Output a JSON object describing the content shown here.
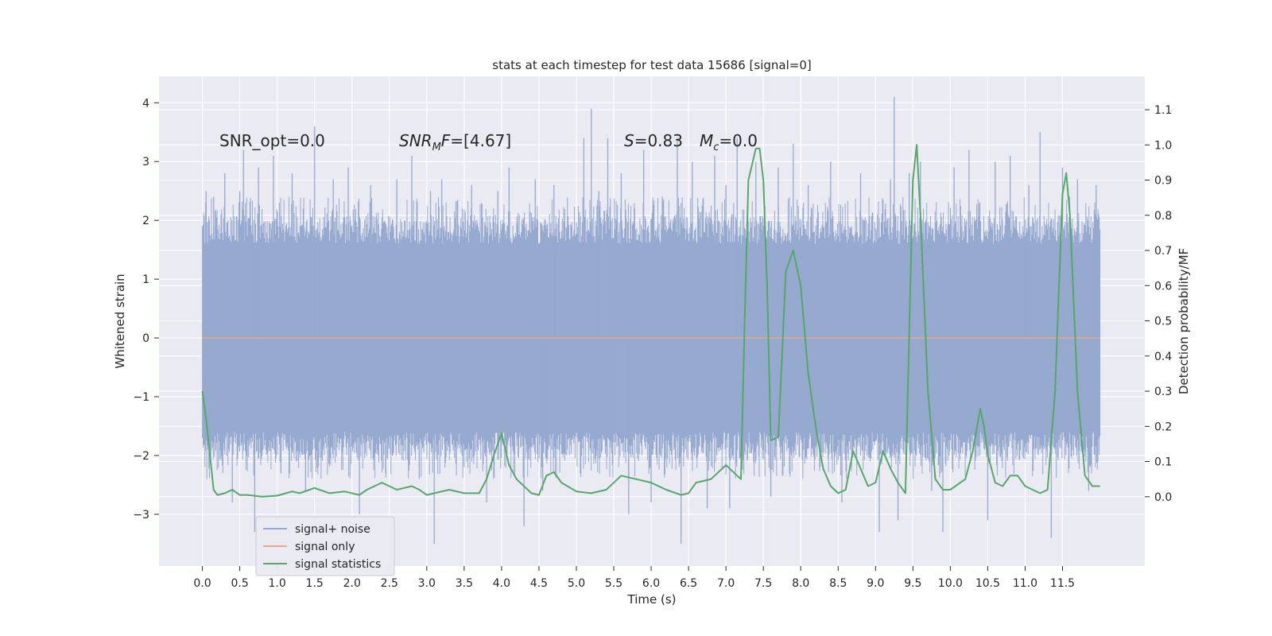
{
  "chart_data": {
    "type": "line",
    "title": "stats at each timestep for test data 15686 [signal=0]",
    "xlabel": "Time (s)",
    "ylabel": "Whitened strain",
    "y2label": "Detection probability/MF",
    "xlim": [
      -0.58,
      12.6
    ],
    "ylim": [
      -3.88,
      4.45
    ],
    "y2lim": [
      -0.197,
      1.195
    ],
    "x_ticks": [
      "0.0",
      "0.5",
      "1.0",
      "1.5",
      "2.0",
      "2.5",
      "3.0",
      "3.5",
      "4.0",
      "4.5",
      "5.0",
      "5.5",
      "6.0",
      "6.5",
      "7.0",
      "7.5",
      "8.0",
      "8.5",
      "9.0",
      "9.5",
      "10.0",
      "10.5",
      "11.0",
      "11.5"
    ],
    "y_ticks": [
      4,
      3,
      2,
      1,
      0,
      -1,
      -2,
      -3
    ],
    "y_tick_labels": [
      "4",
      "3",
      "2",
      "1",
      "0",
      "−1",
      "−2",
      "−3"
    ],
    "y2_ticks": [
      1.1,
      1.0,
      0.9,
      0.8,
      0.7,
      0.6,
      0.5,
      0.4,
      0.3,
      0.2,
      0.1,
      0.0
    ],
    "y2_tick_labels": [
      "1.1",
      "1.0",
      "0.9",
      "0.8",
      "0.7",
      "0.6",
      "0.5",
      "0.4",
      "0.3",
      "0.2",
      "0.1",
      "0.0"
    ],
    "grid": true,
    "legend_position": "lower-left",
    "annotations": {
      "snr_opt": "SNR_opt=0.0",
      "snr_mf_name": "SNR",
      "snr_mf_sub": "M",
      "snr_mf_suffix": "F",
      "snr_mf_value": "=[4.67]",
      "s_name": "S",
      "s_value": "=0.83",
      "mc_name": "M",
      "mc_sub": "c",
      "mc_value": "=0.0"
    },
    "series": [
      {
        "name": "signal+ noise",
        "color": "#96a9cf",
        "axis": "left",
        "x_range": [
          0.0,
          12.0
        ],
        "band_abs": 1.5,
        "spikes": [
          {
            "x": 0.05,
            "y": 2.5
          },
          {
            "x": 0.1,
            "y": -1.7
          },
          {
            "x": 0.15,
            "y": 2.4
          },
          {
            "x": 0.25,
            "y": 2.1
          },
          {
            "x": 0.3,
            "y": 2.8
          },
          {
            "x": 0.4,
            "y": -2.8
          },
          {
            "x": 0.5,
            "y": 2.5
          },
          {
            "x": 0.55,
            "y": 3.2
          },
          {
            "x": 0.7,
            "y": -3.3
          },
          {
            "x": 0.75,
            "y": 2.9
          },
          {
            "x": 0.95,
            "y": 3.1
          },
          {
            "x": 1.05,
            "y": -2.3
          },
          {
            "x": 1.2,
            "y": 2.8
          },
          {
            "x": 1.38,
            "y": -2.6
          },
          {
            "x": 1.5,
            "y": 3.6
          },
          {
            "x": 1.75,
            "y": 2.7
          },
          {
            "x": 1.95,
            "y": 2.9
          },
          {
            "x": 2.1,
            "y": -3.0
          },
          {
            "x": 2.25,
            "y": 2.6
          },
          {
            "x": 2.45,
            "y": -2.3
          },
          {
            "x": 2.6,
            "y": 2.7
          },
          {
            "x": 2.8,
            "y": 3.1
          },
          {
            "x": 2.9,
            "y": -2.4
          },
          {
            "x": 3.05,
            "y": 2.5
          },
          {
            "x": 3.1,
            "y": -3.5
          },
          {
            "x": 3.2,
            "y": 2.7
          },
          {
            "x": 3.6,
            "y": 2.6
          },
          {
            "x": 3.8,
            "y": -2.8
          },
          {
            "x": 3.95,
            "y": 2.5
          },
          {
            "x": 4.1,
            "y": 2.9
          },
          {
            "x": 4.3,
            "y": -3.2
          },
          {
            "x": 4.45,
            "y": 2.7
          },
          {
            "x": 4.55,
            "y": -2.6
          },
          {
            "x": 4.7,
            "y": 2.6
          },
          {
            "x": 5.1,
            "y": 3.4
          },
          {
            "x": 5.2,
            "y": 3.9
          },
          {
            "x": 5.3,
            "y": 2.5
          },
          {
            "x": 5.42,
            "y": 3.4
          },
          {
            "x": 5.6,
            "y": 2.8
          },
          {
            "x": 5.7,
            "y": -3.0
          },
          {
            "x": 5.9,
            "y": 3.2
          },
          {
            "x": 6.0,
            "y": -2.8
          },
          {
            "x": 6.15,
            "y": 2.4
          },
          {
            "x": 6.35,
            "y": 3.4
          },
          {
            "x": 6.4,
            "y": -3.5
          },
          {
            "x": 6.55,
            "y": 3.0
          },
          {
            "x": 6.75,
            "y": -2.9
          },
          {
            "x": 6.85,
            "y": 3.1
          },
          {
            "x": 7.0,
            "y": 2.6
          },
          {
            "x": 7.05,
            "y": -2.9
          },
          {
            "x": 7.15,
            "y": 3.4
          },
          {
            "x": 7.4,
            "y": 3.0
          },
          {
            "x": 7.6,
            "y": -2.7
          },
          {
            "x": 7.7,
            "y": 2.9
          },
          {
            "x": 7.9,
            "y": 3.3
          },
          {
            "x": 8.1,
            "y": 2.6
          },
          {
            "x": 8.4,
            "y": 3.0
          },
          {
            "x": 8.55,
            "y": -2.8
          },
          {
            "x": 8.8,
            "y": 2.8
          },
          {
            "x": 9.05,
            "y": -3.3
          },
          {
            "x": 9.2,
            "y": 2.7
          },
          {
            "x": 9.25,
            "y": 4.1
          },
          {
            "x": 9.3,
            "y": -3.1
          },
          {
            "x": 9.45,
            "y": 2.8
          },
          {
            "x": 9.6,
            "y": 3.0
          },
          {
            "x": 9.75,
            "y": -2.6
          },
          {
            "x": 9.9,
            "y": -3.3
          },
          {
            "x": 10.05,
            "y": 2.9
          },
          {
            "x": 10.25,
            "y": 3.2
          },
          {
            "x": 10.5,
            "y": -3.1
          },
          {
            "x": 10.6,
            "y": 3.0
          },
          {
            "x": 10.8,
            "y": 3.1
          },
          {
            "x": 11.05,
            "y": 2.6
          },
          {
            "x": 11.2,
            "y": 3.5
          },
          {
            "x": 11.35,
            "y": -3.4
          },
          {
            "x": 11.5,
            "y": 2.9
          },
          {
            "x": 11.7,
            "y": 2.7
          },
          {
            "x": 11.85,
            "y": -2.6
          },
          {
            "x": 11.95,
            "y": 2.6
          }
        ]
      },
      {
        "name": "signal only",
        "color": "#e4a88e",
        "axis": "left",
        "x": [
          0.0,
          12.0
        ],
        "y": [
          0.0,
          0.0
        ]
      },
      {
        "name": "signal statistics",
        "color": "#55a868",
        "axis": "right",
        "x": [
          0.0,
          0.05,
          0.1,
          0.15,
          0.2,
          0.3,
          0.4,
          0.5,
          0.6,
          0.8,
          1.0,
          1.2,
          1.3,
          1.5,
          1.7,
          1.9,
          2.1,
          2.2,
          2.4,
          2.6,
          2.8,
          2.9,
          3.0,
          3.1,
          3.3,
          3.5,
          3.7,
          3.8,
          3.9,
          4.0,
          4.1,
          4.2,
          4.4,
          4.5,
          4.6,
          4.7,
          4.8,
          5.0,
          5.2,
          5.4,
          5.6,
          5.8,
          6.0,
          6.2,
          6.4,
          6.5,
          6.6,
          6.8,
          7.0,
          7.1,
          7.2,
          7.25,
          7.3,
          7.4,
          7.45,
          7.5,
          7.55,
          7.6,
          7.7,
          7.75,
          7.8,
          7.9,
          8.0,
          8.1,
          8.2,
          8.3,
          8.4,
          8.5,
          8.6,
          8.7,
          8.8,
          8.9,
          9.0,
          9.1,
          9.2,
          9.3,
          9.4,
          9.5,
          9.55,
          9.6,
          9.7,
          9.8,
          9.9,
          10.0,
          10.2,
          10.3,
          10.4,
          10.45,
          10.5,
          10.6,
          10.7,
          10.8,
          10.9,
          11.0,
          11.1,
          11.2,
          11.3,
          11.4,
          11.5,
          11.55,
          11.6,
          11.7,
          11.8,
          11.9,
          12.0
        ],
        "y": [
          0.3,
          0.22,
          0.12,
          0.02,
          0.005,
          0.01,
          0.02,
          0.005,
          0.005,
          0.0,
          0.003,
          0.015,
          0.01,
          0.025,
          0.01,
          0.015,
          0.005,
          0.02,
          0.04,
          0.02,
          0.03,
          0.02,
          0.005,
          0.01,
          0.02,
          0.01,
          0.01,
          0.05,
          0.12,
          0.18,
          0.09,
          0.05,
          0.01,
          0.005,
          0.06,
          0.07,
          0.04,
          0.015,
          0.01,
          0.02,
          0.06,
          0.05,
          0.04,
          0.02,
          0.005,
          0.01,
          0.04,
          0.05,
          0.09,
          0.07,
          0.05,
          0.5,
          0.9,
          0.99,
          0.99,
          0.9,
          0.6,
          0.16,
          0.17,
          0.4,
          0.64,
          0.7,
          0.6,
          0.35,
          0.2,
          0.08,
          0.03,
          0.01,
          0.02,
          0.13,
          0.08,
          0.03,
          0.04,
          0.13,
          0.08,
          0.04,
          0.01,
          0.9,
          1.0,
          0.8,
          0.3,
          0.05,
          0.02,
          0.02,
          0.05,
          0.13,
          0.25,
          0.2,
          0.12,
          0.04,
          0.03,
          0.06,
          0.06,
          0.03,
          0.02,
          0.01,
          0.02,
          0.3,
          0.86,
          0.92,
          0.8,
          0.3,
          0.06,
          0.03,
          0.03
        ]
      }
    ]
  }
}
